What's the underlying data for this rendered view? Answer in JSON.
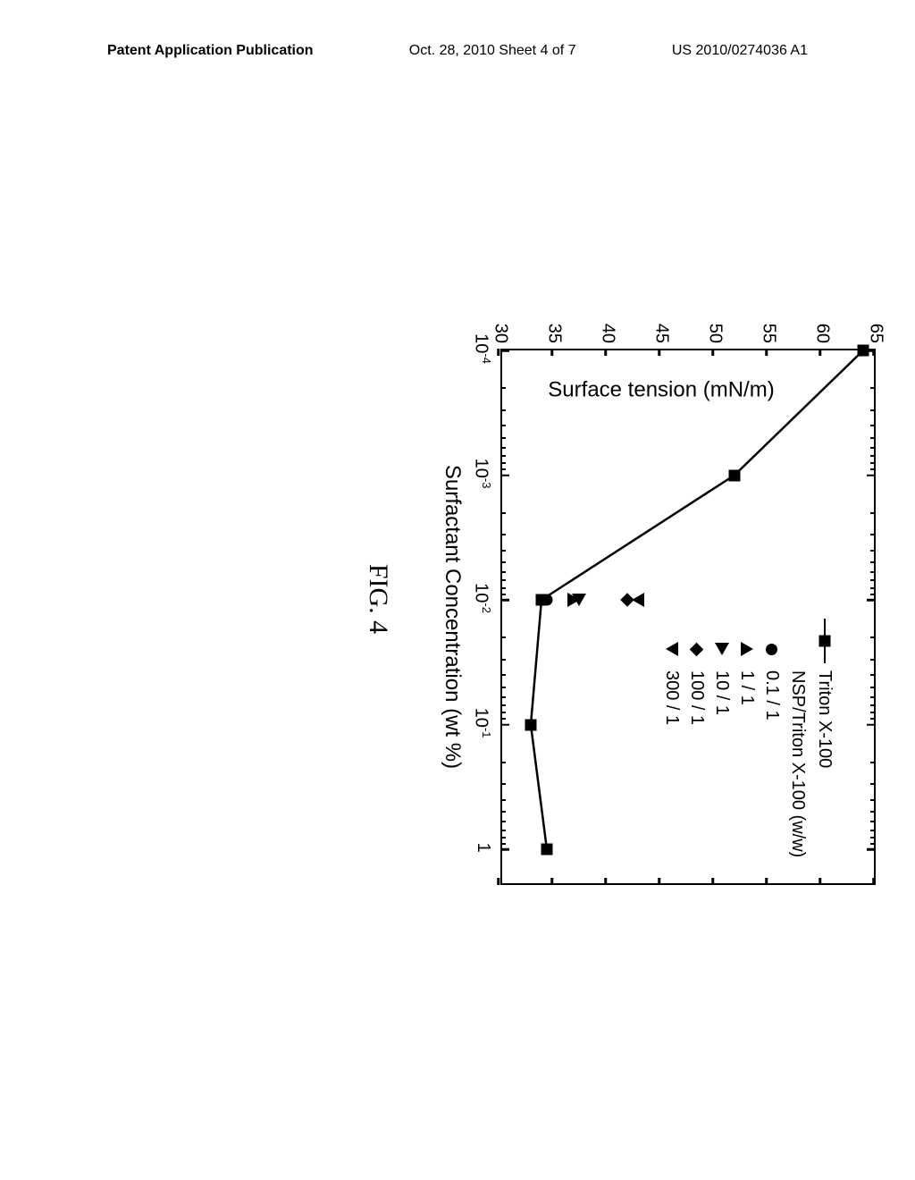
{
  "header": {
    "left": "Patent Application Publication",
    "center": "Oct. 28, 2010  Sheet 4 of 7",
    "right": "US 2010/0274036 A1"
  },
  "figure_caption": "FIG. 4",
  "chart": {
    "type": "line",
    "xlabel": "Surfactant Concentration (wt %)",
    "ylabel": "Surface tension (mN/m)",
    "xscale": "log",
    "xlim_exp": [
      -4,
      0.3
    ],
    "ylim": [
      30,
      65
    ],
    "ytick_step": 5,
    "xtick_exps": [
      -4,
      -3,
      -2,
      -1,
      0
    ],
    "xtick_labels": [
      "10⁻⁴",
      "10⁻³",
      "10⁻²",
      "10⁻¹",
      "1"
    ],
    "background_color": "#ffffff",
    "border_color": "#000000",
    "line_width": 2.5,
    "marker_size": 13,
    "fontsize_label": 24,
    "fontsize_tick": 20,
    "series_main": {
      "label": "Triton X-100",
      "marker": "square",
      "color": "#000000",
      "points": [
        {
          "x_exp": -4,
          "y": 64
        },
        {
          "x_exp": -3,
          "y": 52
        },
        {
          "x_exp": -2,
          "y": 34
        },
        {
          "x_exp": -1,
          "y": 33
        },
        {
          "x_exp": 0,
          "y": 34.5
        }
      ]
    },
    "overlay_heading": "NSP/Triton X-100 (w/w)",
    "overlay_points": [
      {
        "label": "0.1 / 1",
        "marker": "circle",
        "x_exp": -2,
        "y": 34.5
      },
      {
        "label": "1 / 1",
        "marker": "triangle-up",
        "x_exp": -2,
        "y": 37
      },
      {
        "label": "10 / 1",
        "marker": "triangle-right",
        "x_exp": -2,
        "y": 37.5
      },
      {
        "label": "100 / 1",
        "marker": "diamond",
        "x_exp": -2,
        "y": 42
      },
      {
        "label": "300 / 1",
        "marker": "triangle-down",
        "x_exp": -2,
        "y": 43
      }
    ]
  }
}
